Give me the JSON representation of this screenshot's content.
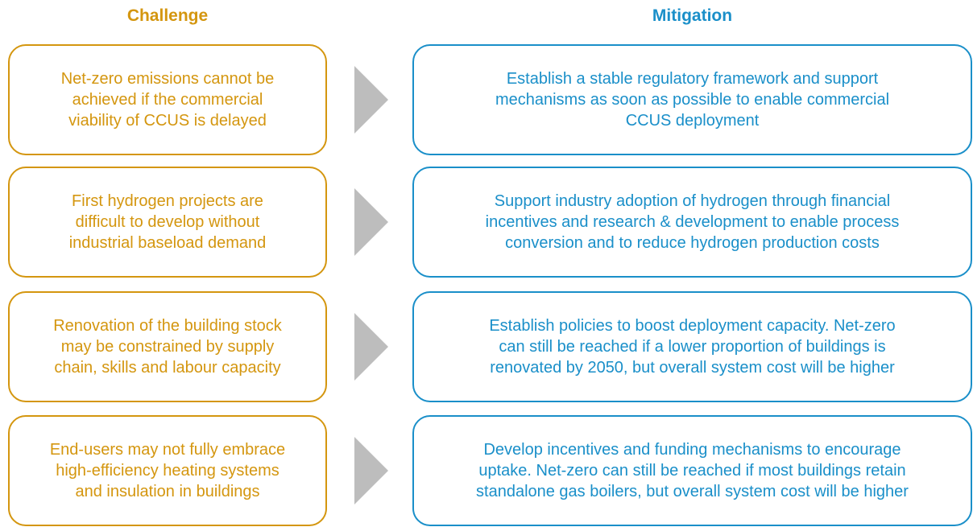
{
  "header": {
    "challenge": "Challenge",
    "mitigation": "Mitigation"
  },
  "rows": [
    {
      "challenge": [
        "Net-zero emissions cannot be",
        "achieved if the commercial",
        "viability of CCUS is delayed"
      ],
      "mitigation": [
        "Establish a stable regulatory framework and support",
        "mechanisms as soon as possible to enable commercial",
        "CCUS deployment"
      ]
    },
    {
      "challenge": [
        "First hydrogen projects are",
        "difficult to develop without",
        "industrial baseload demand"
      ],
      "mitigation": [
        "Support industry adoption of hydrogen through financial",
        "incentives and research & development to enable process",
        "conversion and to reduce hydrogen production costs"
      ]
    },
    {
      "challenge": [
        "Renovation of the building stock",
        "may be constrained by supply",
        "chain, skills and labour capacity"
      ],
      "mitigation": [
        "Establish policies to boost deployment capacity. Net-zero",
        "can still be reached if a lower proportion of buildings is",
        "renovated by 2050, but overall system cost will be higher"
      ]
    },
    {
      "challenge": [
        "End-users may not fully embrace",
        "high-efficiency heating systems",
        "and insulation in buildings"
      ],
      "mitigation": [
        "Develop incentives and funding mechanisms to encourage",
        "uptake. Net-zero can still be reached if most buildings retain",
        "standalone gas boilers, but overall system cost will be higher"
      ]
    }
  ]
}
